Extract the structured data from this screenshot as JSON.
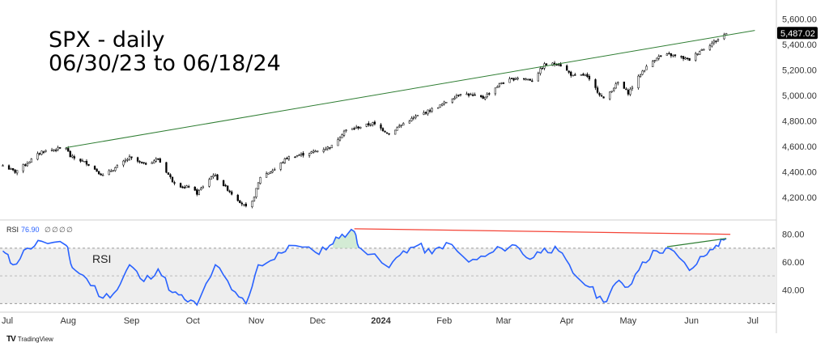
{
  "chart_data": [
    {
      "type": "candlestick",
      "title": "SPX - daily",
      "subtitle": "06/30/23 to 06/18/24",
      "ylim": [
        4060,
        5660
      ],
      "y_ticks": [
        "5,600.00",
        "5,400.00",
        "5,200.00",
        "5,000.00",
        "4,800.00",
        "4,600.00",
        "4,400.00",
        "4,200.00"
      ],
      "y_tick_values": [
        5600,
        5400,
        5200,
        5000,
        4800,
        4600,
        4400,
        4200
      ],
      "last_price_label": "5,487.02",
      "last_price": 5487.02,
      "x_ticks": [
        "Jul",
        "Aug",
        "Sep",
        "Oct",
        "Nov",
        "Dec",
        "2024",
        "Feb",
        "Mar",
        "Apr",
        "May",
        "Jun",
        "Jul"
      ],
      "x_tick_dates": [
        "2023-07-01",
        "2023-08-01",
        "2023-09-01",
        "2023-10-01",
        "2023-11-01",
        "2023-12-01",
        "2024-01-01",
        "2024-02-01",
        "2024-03-01",
        "2024-04-01",
        "2024-05-01",
        "2024-06-01",
        "2024-07-01"
      ],
      "x_range": [
        "2023-07-01",
        "2024-07-05"
      ],
      "close_path": [
        [
          "2023-06-30",
          4450
        ],
        [
          "2023-07-06",
          4400
        ],
        [
          "2023-07-12",
          4470
        ],
        [
          "2023-07-19",
          4560
        ],
        [
          "2023-07-31",
          4590
        ],
        [
          "2023-08-02",
          4520
        ],
        [
          "2023-08-10",
          4470
        ],
        [
          "2023-08-18",
          4370
        ],
        [
          "2023-08-23",
          4420
        ],
        [
          "2023-08-31",
          4510
        ],
        [
          "2023-09-07",
          4460
        ],
        [
          "2023-09-14",
          4500
        ],
        [
          "2023-09-21",
          4330
        ],
        [
          "2023-09-27",
          4270
        ],
        [
          "2023-09-29",
          4290
        ],
        [
          "2023-10-03",
          4230
        ],
        [
          "2023-10-11",
          4380
        ],
        [
          "2023-10-20",
          4230
        ],
        [
          "2023-10-27",
          4120
        ],
        [
          "2023-10-30",
          4160
        ],
        [
          "2023-11-03",
          4360
        ],
        [
          "2023-11-10",
          4420
        ],
        [
          "2023-11-16",
          4510
        ],
        [
          "2023-11-30",
          4560
        ],
        [
          "2023-12-08",
          4600
        ],
        [
          "2023-12-14",
          4720
        ],
        [
          "2023-12-28",
          4780
        ],
        [
          "2024-01-05",
          4700
        ],
        [
          "2024-01-12",
          4780
        ],
        [
          "2024-01-19",
          4840
        ],
        [
          "2024-01-30",
          4920
        ],
        [
          "2024-02-09",
          5020
        ],
        [
          "2024-02-20",
          4980
        ],
        [
          "2024-02-29",
          5100
        ],
        [
          "2024-03-08",
          5140
        ],
        [
          "2024-03-15",
          5120
        ],
        [
          "2024-03-21",
          5240
        ],
        [
          "2024-03-28",
          5250
        ],
        [
          "2024-04-04",
          5150
        ],
        [
          "2024-04-10",
          5160
        ],
        [
          "2024-04-19",
          4970
        ],
        [
          "2024-04-26",
          5100
        ],
        [
          "2024-05-01",
          5020
        ],
        [
          "2024-05-08",
          5190
        ],
        [
          "2024-05-15",
          5300
        ],
        [
          "2024-05-21",
          5320
        ],
        [
          "2024-05-31",
          5280
        ],
        [
          "2024-06-05",
          5350
        ],
        [
          "2024-06-12",
          5420
        ],
        [
          "2024-06-18",
          5487
        ]
      ],
      "trendline": {
        "color": "#2e7d32",
        "points": [
          [
            "2023-07-31",
            4590
          ],
          [
            "2024-07-02",
            5510
          ]
        ]
      }
    },
    {
      "type": "line",
      "legend": "RSI",
      "legend_value": "76.90",
      "legend_placeholders": [
        "∅",
        "∅",
        "∅",
        "∅"
      ],
      "label": "RSI",
      "ylim": [
        25,
        88
      ],
      "y_ticks": [
        "80.00",
        "60.00",
        "40.00"
      ],
      "y_tick_values": [
        80,
        60,
        40
      ],
      "band": [
        30,
        70
      ],
      "midline": 50,
      "color": "#2962ff",
      "points": [
        [
          "2023-06-30",
          68
        ],
        [
          "2023-07-05",
          58
        ],
        [
          "2023-07-12",
          70
        ],
        [
          "2023-07-19",
          75
        ],
        [
          "2023-07-31",
          72
        ],
        [
          "2023-08-03",
          56
        ],
        [
          "2023-08-10",
          48
        ],
        [
          "2023-08-18",
          34
        ],
        [
          "2023-08-25",
          40
        ],
        [
          "2023-08-31",
          58
        ],
        [
          "2023-09-07",
          46
        ],
        [
          "2023-09-14",
          55
        ],
        [
          "2023-09-21",
          38
        ],
        [
          "2023-09-27",
          33
        ],
        [
          "2023-10-03",
          29
        ],
        [
          "2023-10-12",
          58
        ],
        [
          "2023-10-20",
          40
        ],
        [
          "2023-10-27",
          30
        ],
        [
          "2023-11-02",
          58
        ],
        [
          "2023-11-10",
          62
        ],
        [
          "2023-11-17",
          72
        ],
        [
          "2023-11-30",
          67
        ],
        [
          "2023-12-07",
          72
        ],
        [
          "2023-12-13",
          80
        ],
        [
          "2023-12-19",
          82
        ],
        [
          "2023-12-22",
          70
        ],
        [
          "2024-01-05",
          56
        ],
        [
          "2024-01-12",
          68
        ],
        [
          "2024-01-19",
          72
        ],
        [
          "2024-01-26",
          66
        ],
        [
          "2024-02-02",
          74
        ],
        [
          "2024-02-13",
          60
        ],
        [
          "2024-02-21",
          64
        ],
        [
          "2024-02-29",
          70
        ],
        [
          "2024-03-07",
          72
        ],
        [
          "2024-03-14",
          62
        ],
        [
          "2024-03-21",
          70
        ],
        [
          "2024-03-28",
          68
        ],
        [
          "2024-04-04",
          52
        ],
        [
          "2024-04-12",
          42
        ],
        [
          "2024-04-19",
          31
        ],
        [
          "2024-04-25",
          45
        ],
        [
          "2024-05-01",
          42
        ],
        [
          "2024-05-08",
          60
        ],
        [
          "2024-05-15",
          68
        ],
        [
          "2024-05-21",
          70
        ],
        [
          "2024-05-31",
          54
        ],
        [
          "2024-06-07",
          64
        ],
        [
          "2024-06-13",
          72
        ],
        [
          "2024-06-18",
          77
        ]
      ],
      "trendlines": [
        {
          "color": "#f44336",
          "points": [
            [
              "2023-12-19",
              84
            ],
            [
              "2024-06-20",
              80
            ]
          ]
        },
        {
          "color": "#2e7d32",
          "points": [
            [
              "2024-05-20",
              71
            ],
            [
              "2024-06-18",
              77
            ]
          ]
        }
      ]
    }
  ],
  "footer": {
    "logo": "TV",
    "text": "TradingView"
  },
  "colors": {
    "candle": "#000000",
    "price_line": "#2e7d32",
    "rsi": "#2962ff",
    "band_fill": "#eeeeee",
    "last_price_bg": "#000000"
  }
}
